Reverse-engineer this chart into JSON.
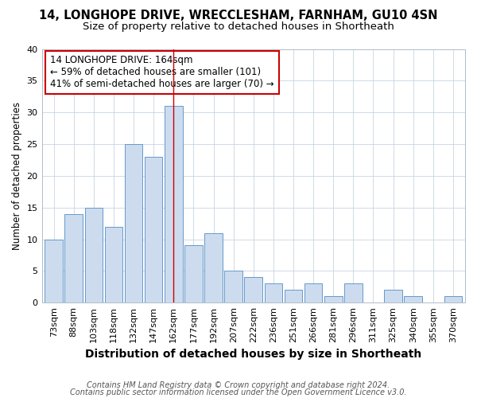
{
  "title1": "14, LONGHOPE DRIVE, WRECCLESHAM, FARNHAM, GU10 4SN",
  "title2": "Size of property relative to detached houses in Shortheath",
  "xlabel": "Distribution of detached houses by size in Shortheath",
  "ylabel": "Number of detached properties",
  "categories": [
    "73sqm",
    "88sqm",
    "103sqm",
    "118sqm",
    "132sqm",
    "147sqm",
    "162sqm",
    "177sqm",
    "192sqm",
    "207sqm",
    "222sqm",
    "236sqm",
    "251sqm",
    "266sqm",
    "281sqm",
    "296sqm",
    "311sqm",
    "325sqm",
    "340sqm",
    "355sqm",
    "370sqm"
  ],
  "values": [
    10,
    14,
    15,
    12,
    25,
    23,
    31,
    9,
    11,
    5,
    4,
    3,
    2,
    3,
    1,
    3,
    0,
    2,
    1,
    0,
    1
  ],
  "bar_color": "#ccdcee",
  "bar_edge_color": "#6699cc",
  "highlight_index": 6,
  "highlight_line_color": "#cc0000",
  "annotation_box_text": "14 LONGHOPE DRIVE: 164sqm\n← 59% of detached houses are smaller (101)\n41% of semi-detached houses are larger (70) →",
  "annotation_box_color": "#cc0000",
  "ylim": [
    0,
    40
  ],
  "yticks": [
    0,
    5,
    10,
    15,
    20,
    25,
    30,
    35,
    40
  ],
  "footnote1": "Contains HM Land Registry data © Crown copyright and database right 2024.",
  "footnote2": "Contains public sector information licensed under the Open Government Licence v3.0.",
  "background_color": "#ffffff",
  "plot_background_color": "#ffffff",
  "title1_fontsize": 10.5,
  "title2_fontsize": 9.5,
  "xlabel_fontsize": 10,
  "ylabel_fontsize": 8.5,
  "tick_fontsize": 8,
  "footnote_fontsize": 7,
  "ann_fontsize": 8.5
}
